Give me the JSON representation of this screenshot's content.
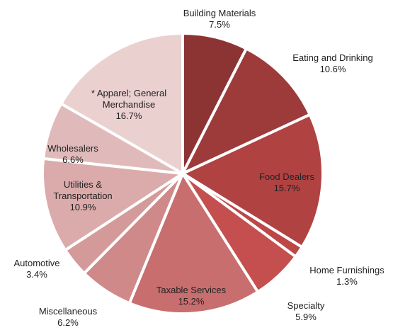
{
  "chart_data": {
    "type": "pie",
    "categories": [
      "Building Materials",
      "Eating and Drinking",
      "Food Dealers",
      "Home Furnishings",
      "Specialty",
      "Taxable Services",
      "Miscellaneous",
      "Automotive",
      "Utilities & Transportation",
      "Wholesalers",
      "* Apparel; General Merchandise"
    ],
    "values": [
      7.5,
      10.6,
      15.7,
      1.3,
      5.9,
      15.2,
      6.2,
      3.4,
      10.9,
      6.6,
      16.7
    ],
    "value_labels": [
      "7.5%",
      "10.6%",
      "15.7%",
      "1.3%",
      "5.9%",
      "15.2%",
      "6.2%",
      "3.4%",
      "10.9%",
      "6.6%",
      "16.7%"
    ],
    "colors": [
      "#8c3333",
      "#9d3a3a",
      "#b04242",
      "#bd4747",
      "#c54f4f",
      "#c86e6e",
      "#cf8989",
      "#d49a9a",
      "#dbabab",
      "#e0baba",
      "#ebd0d0"
    ]
  }
}
